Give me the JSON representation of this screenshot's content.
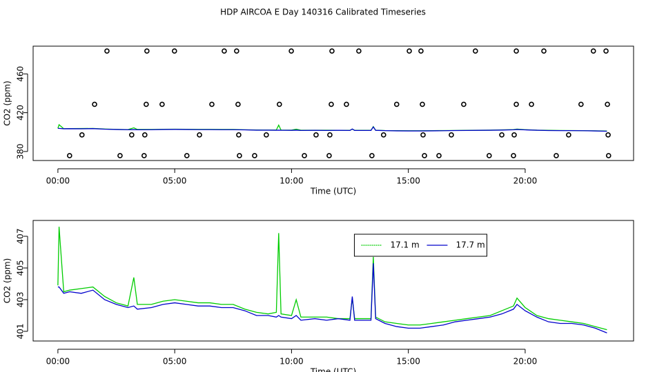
{
  "title": "HDP AIRCOA E  Day 140316  Calibrated Timeseries",
  "chart_data": [
    {
      "type": "line",
      "x_label": "Time (UTC)",
      "y_label": "CO2 (ppm)",
      "xlim": [
        -1.06,
        24.64
      ],
      "xticks": [
        {
          "value": 0,
          "label": "00:00"
        },
        {
          "value": 5,
          "label": "05:00"
        },
        {
          "value": 10,
          "label": "10:00"
        },
        {
          "value": 15,
          "label": "15:00"
        },
        {
          "value": 20,
          "label": "20:00"
        }
      ],
      "ylim": [
        370.7,
        488.6
      ],
      "yticks": [
        380,
        420,
        460
      ],
      "x": [
        0,
        0.05,
        0.25,
        0.5,
        1,
        1.5,
        2,
        2.5,
        3,
        3.25,
        3.4,
        4,
        4.5,
        5,
        5.5,
        6,
        6.5,
        7,
        7.5,
        8,
        8.5,
        9,
        9.35,
        9.45,
        9.55,
        10,
        10.2,
        10.4,
        11,
        11.5,
        12,
        12.5,
        12.6,
        12.7,
        13,
        13.4,
        13.5,
        13.6,
        14,
        14.5,
        15,
        15.5,
        16,
        16.5,
        17,
        17.5,
        18,
        18.5,
        19,
        19.5,
        19.65,
        20,
        20.5,
        21,
        21.5,
        22,
        22.5,
        23,
        23.5
      ],
      "series": [
        {
          "color": "#00cc00",
          "values": [
            403.9,
            407.6,
            403.5,
            403.6,
            403.7,
            403.8,
            403.2,
            402.8,
            402.6,
            404.4,
            402.7,
            402.7,
            402.9,
            403.0,
            402.9,
            402.8,
            402.8,
            402.7,
            402.7,
            402.4,
            402.2,
            402.1,
            402.2,
            407.2,
            402.1,
            402.0,
            403.0,
            401.9,
            401.9,
            401.9,
            401.8,
            401.8,
            403.1,
            401.8,
            401.8,
            401.8,
            405.7,
            401.9,
            401.6,
            401.5,
            401.4,
            401.4,
            401.5,
            401.6,
            401.7,
            401.8,
            401.9,
            402.0,
            402.3,
            402.6,
            403.1,
            402.5,
            402.0,
            401.8,
            401.7,
            401.6,
            401.5,
            401.3,
            401.1
          ]
        },
        {
          "color": "#0000cc",
          "values": [
            403.8,
            403.8,
            403.4,
            403.5,
            403.4,
            403.6,
            403.0,
            402.7,
            402.5,
            402.6,
            402.4,
            402.5,
            402.7,
            402.8,
            402.7,
            402.6,
            402.6,
            402.5,
            402.5,
            402.3,
            402.0,
            402.0,
            401.9,
            402.0,
            401.9,
            401.8,
            402.0,
            401.7,
            401.8,
            401.7,
            401.8,
            401.7,
            403.2,
            401.7,
            401.7,
            401.7,
            405.3,
            401.8,
            401.5,
            401.3,
            401.2,
            401.2,
            401.3,
            401.4,
            401.6,
            401.7,
            401.8,
            401.9,
            402.1,
            402.4,
            402.7,
            402.3,
            401.9,
            401.6,
            401.5,
            401.5,
            401.4,
            401.2,
            400.9
          ]
        }
      ],
      "points": {
        "color": "#000000",
        "x": [
          2.1,
          3.81,
          4.99,
          7.12,
          7.65,
          9.99,
          11.73,
          12.88,
          15.04,
          15.54,
          17.87,
          19.62,
          20.8,
          22.92,
          23.46,
          1.57,
          3.78,
          4.46,
          6.59,
          7.71,
          9.48,
          11.7,
          12.35,
          14.5,
          15.6,
          17.37,
          19.62,
          20.27,
          22.39,
          23.52,
          1.03,
          3.16,
          3.72,
          6.06,
          7.74,
          8.92,
          11.05,
          11.64,
          13.94,
          15.63,
          16.84,
          19.0,
          19.53,
          21.86,
          23.55,
          0.5,
          2.66,
          3.69,
          5.52,
          7.77,
          8.42,
          10.55,
          11.61,
          13.44,
          15.69,
          16.31,
          18.46,
          19.5,
          21.33,
          23.57
        ],
        "y": [
          483.6,
          483.6,
          483.6,
          483.6,
          483.6,
          483.6,
          483.6,
          483.6,
          483.6,
          483.6,
          483.6,
          483.6,
          483.6,
          483.6,
          483.6,
          428.6,
          428.6,
          428.6,
          428.6,
          428.6,
          428.6,
          428.6,
          428.6,
          428.6,
          428.6,
          428.6,
          428.6,
          428.6,
          428.6,
          428.6,
          397.1,
          397.1,
          397.1,
          397.1,
          397.1,
          397.1,
          397.1,
          397.1,
          397.1,
          397.1,
          397.1,
          397.1,
          397.1,
          397.1,
          397.1,
          375.7,
          375.7,
          375.7,
          375.7,
          375.7,
          375.7,
          375.7,
          375.7,
          375.7,
          375.7,
          375.7,
          375.7,
          375.7,
          375.7,
          375.7
        ]
      }
    },
    {
      "type": "line",
      "x_label": "Time (UTC)",
      "y_label": "CO2 (ppm)",
      "legend": "top",
      "xlim": [
        -1.06,
        24.64
      ],
      "xticks": [
        {
          "value": 0,
          "label": "00:00"
        },
        {
          "value": 5,
          "label": "05:00"
        },
        {
          "value": 10,
          "label": "10:00"
        },
        {
          "value": 15,
          "label": "15:00"
        },
        {
          "value": 20,
          "label": "20:00"
        }
      ],
      "ylim": [
        400.39,
        408.0
      ],
      "yticks": [
        401,
        403,
        405,
        407
      ],
      "x": [
        0,
        0.05,
        0.25,
        0.5,
        1,
        1.5,
        2,
        2.5,
        3,
        3.25,
        3.4,
        4,
        4.5,
        5,
        5.5,
        6,
        6.5,
        7,
        7.5,
        8,
        8.5,
        9,
        9.35,
        9.45,
        9.55,
        10,
        10.2,
        10.4,
        11,
        11.5,
        12,
        12.5,
        12.6,
        12.7,
        13,
        13.4,
        13.5,
        13.6,
        14,
        14.5,
        15,
        15.5,
        16,
        16.5,
        17,
        17.5,
        18,
        18.5,
        19,
        19.5,
        19.65,
        20,
        20.5,
        21,
        21.5,
        22,
        22.5,
        23,
        23.5
      ],
      "series": [
        {
          "name": "17.1 m",
          "color": "#00cc00",
          "values": [
            403.9,
            407.6,
            403.5,
            403.6,
            403.7,
            403.8,
            403.2,
            402.8,
            402.6,
            404.4,
            402.7,
            402.7,
            402.9,
            403.0,
            402.9,
            402.8,
            402.8,
            402.7,
            402.7,
            402.4,
            402.2,
            402.1,
            402.2,
            407.2,
            402.1,
            402.0,
            403.0,
            401.9,
            401.9,
            401.9,
            401.8,
            401.8,
            403.1,
            401.8,
            401.8,
            401.8,
            405.7,
            401.9,
            401.6,
            401.5,
            401.4,
            401.4,
            401.5,
            401.6,
            401.7,
            401.8,
            401.9,
            402.0,
            402.3,
            402.6,
            403.1,
            402.5,
            402.0,
            401.8,
            401.7,
            401.6,
            401.5,
            401.3,
            401.1
          ]
        },
        {
          "name": "17.7 m",
          "color": "#0000cc",
          "values": [
            403.8,
            403.8,
            403.4,
            403.5,
            403.4,
            403.6,
            403.0,
            402.7,
            402.5,
            402.6,
            402.4,
            402.5,
            402.7,
            402.8,
            402.7,
            402.6,
            402.6,
            402.5,
            402.5,
            402.3,
            402.0,
            402.0,
            401.9,
            402.0,
            401.9,
            401.8,
            402.0,
            401.7,
            401.8,
            401.7,
            401.8,
            401.7,
            403.2,
            401.7,
            401.7,
            401.7,
            405.3,
            401.8,
            401.5,
            401.3,
            401.2,
            401.2,
            401.3,
            401.4,
            401.6,
            401.7,
            401.8,
            401.9,
            402.1,
            402.4,
            402.7,
            402.3,
            401.9,
            401.6,
            401.5,
            401.5,
            401.4,
            401.2,
            400.9
          ]
        }
      ]
    }
  ]
}
